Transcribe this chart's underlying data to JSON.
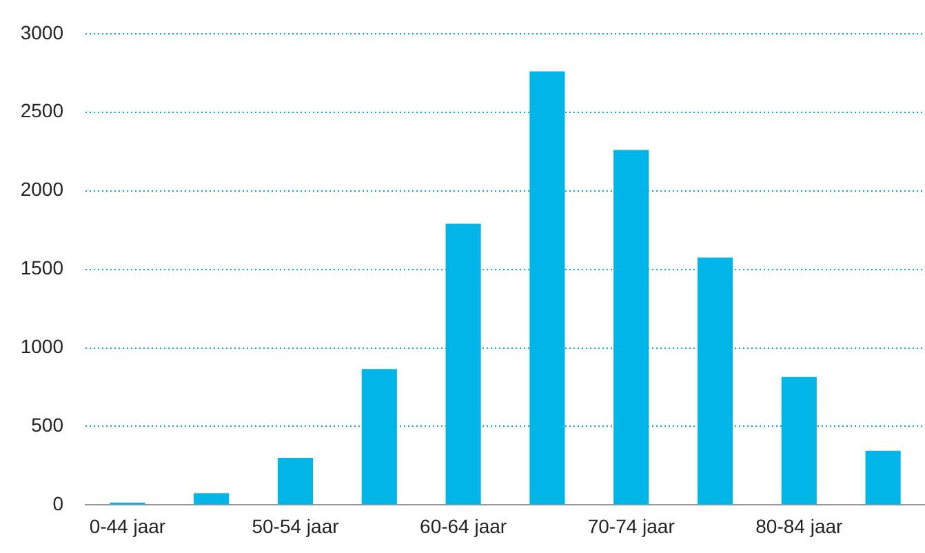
{
  "chart_data": {
    "type": "bar",
    "categories": [
      "0-44 jaar",
      null,
      "50-54 jaar",
      null,
      "60-64 jaar",
      null,
      "70-74 jaar",
      null,
      "80-84 jaar",
      null
    ],
    "values": [
      15,
      75,
      300,
      865,
      1790,
      2760,
      2260,
      1575,
      815,
      345
    ],
    "color": "#00b5e8",
    "ylim": [
      0,
      3000
    ],
    "yticks": [
      0,
      500,
      1000,
      1500,
      2000,
      2500,
      3000
    ],
    "grid": "y"
  }
}
